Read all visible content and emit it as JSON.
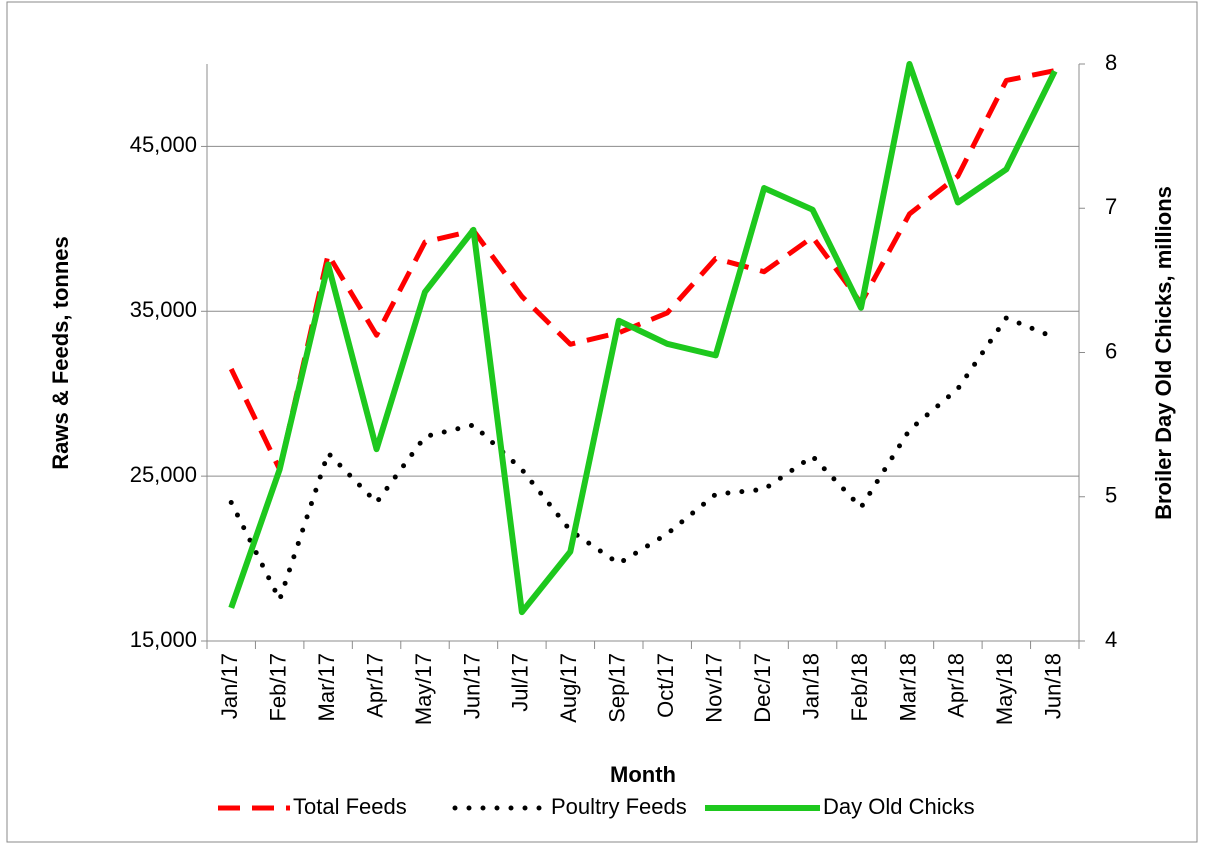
{
  "chart_data": {
    "type": "line",
    "x_label": "Month",
    "y_label": "Raws & Feeds, tonnes",
    "y2_label": "Broiler Day Old Chicks, millions",
    "categories": [
      "Jan/17",
      "Feb/17",
      "Mar/17",
      "Apr/17",
      "May/17",
      "Jun/17",
      "Jul/17",
      "Aug/17",
      "Sep/17",
      "Oct/17",
      "Nov/17",
      "Dec/17",
      "Jan/18",
      "Feb/18",
      "Mar/18",
      "Apr/18",
      "May/18",
      "Jun/18"
    ],
    "series": [
      {
        "name": "Total Feeds",
        "color": "#ff0000",
        "style": "dashed",
        "values": [
          31500,
          25400,
          38450,
          33550,
          39200,
          39900,
          35900,
          33000,
          33700,
          34900,
          38200,
          37400,
          39500,
          35500,
          40900,
          43200,
          49000,
          49600
        ]
      },
      {
        "name": "Poultry Feeds",
        "color": "#000000",
        "style": "dotted",
        "values": [
          23400,
          17500,
          26400,
          23400,
          27400,
          28100,
          25400,
          21700,
          19700,
          21500,
          23900,
          24200,
          26200,
          23100,
          27800,
          30300,
          34600,
          33400
        ]
      },
      {
        "name": "Day Old Chicks",
        "color": "#1ec81e",
        "style": "solid",
        "axis": "y2",
        "values": [
          4.23,
          5.19,
          6.61,
          5.33,
          6.42,
          6.85,
          4.2,
          4.62,
          6.22,
          6.06,
          5.98,
          7.14,
          6.99,
          6.31,
          8.0,
          7.04,
          7.27,
          7.95
        ]
      }
    ],
    "ylim": [
      15000,
      50000
    ],
    "yticks": [
      {
        "value": 15000,
        "label": "15,000"
      },
      {
        "value": 25000,
        "label": "25,000"
      },
      {
        "value": 35000,
        "label": "35,000"
      },
      {
        "value": 45000,
        "label": "45,000"
      }
    ],
    "y2lim": [
      4,
      8
    ],
    "y2ticks": [
      4,
      5,
      6,
      7,
      8
    ],
    "grid": true,
    "legend": "bottom"
  }
}
